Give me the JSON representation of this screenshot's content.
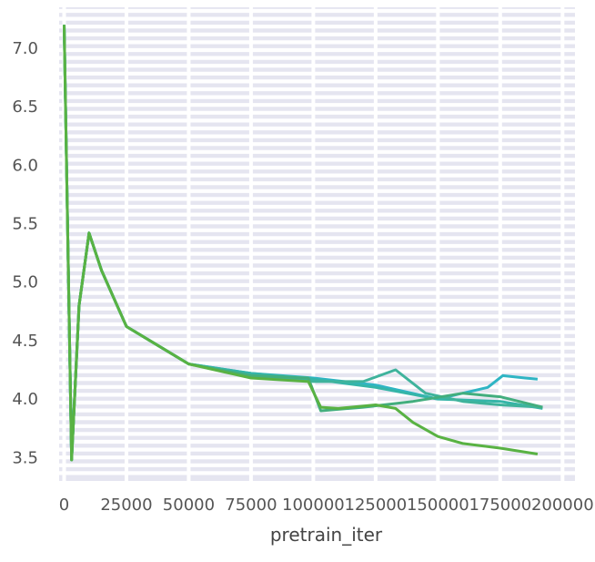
{
  "chart_data": {
    "type": "line",
    "title": "",
    "xlabel": "pretrain_iter",
    "ylabel": "",
    "xlim": [
      -2000,
      205000
    ],
    "ylim": [
      3.3,
      7.35
    ],
    "grid": true,
    "legend": "none",
    "background_color": "#e5e5f0",
    "grid_color": "#ffffff",
    "x_ticks": [
      0,
      25000,
      50000,
      75000,
      100000,
      125000,
      150000,
      175000,
      200000
    ],
    "x_tick_labels": [
      "0",
      "25000",
      "50000",
      "75000",
      "100000",
      "125000",
      "150000",
      "175000",
      "200000"
    ],
    "y_ticks": [
      3.5,
      4.0,
      4.5,
      5.0,
      5.5,
      6.0,
      6.5,
      7.0
    ],
    "y_tick_labels": [
      "3.5",
      "4.0",
      "4.5",
      "5.0",
      "5.5",
      "6.0",
      "6.5",
      "7.0"
    ],
    "series": [
      {
        "color": "#2fb5c4",
        "x": [
          0,
          3000,
          6000,
          10000,
          15000,
          25000,
          50000,
          75000,
          100000,
          125000,
          150000,
          160000,
          170000,
          176000,
          185000,
          190000
        ],
        "y": [
          7.2,
          3.48,
          4.8,
          5.42,
          5.1,
          4.62,
          4.3,
          4.22,
          4.18,
          4.12,
          4.0,
          4.05,
          4.1,
          4.2,
          4.18,
          4.17
        ]
      },
      {
        "color": "#35b5a8",
        "x": [
          0,
          3000,
          6000,
          10000,
          15000,
          25000,
          50000,
          75000,
          100000,
          125000,
          150000,
          175000,
          192000
        ],
        "y": [
          7.2,
          3.48,
          4.8,
          5.42,
          5.1,
          4.62,
          4.3,
          4.22,
          4.17,
          4.1,
          4.0,
          3.98,
          3.92
        ]
      },
      {
        "color": "#3fb39c",
        "x": [
          0,
          3000,
          6000,
          10000,
          15000,
          25000,
          50000,
          75000,
          100000,
          120000,
          133000,
          145000,
          160000,
          175000,
          192000
        ],
        "y": [
          7.2,
          3.48,
          4.8,
          5.42,
          5.1,
          4.62,
          4.3,
          4.2,
          4.15,
          4.15,
          4.25,
          4.05,
          3.98,
          3.95,
          3.93
        ]
      },
      {
        "color": "#43ae7e",
        "x": [
          0,
          3000,
          6000,
          10000,
          15000,
          25000,
          50000,
          75000,
          98000,
          103000,
          120000,
          140000,
          160000,
          175000,
          192000
        ],
        "y": [
          7.2,
          3.48,
          4.8,
          5.42,
          5.1,
          4.62,
          4.3,
          4.2,
          4.18,
          3.9,
          3.93,
          3.98,
          4.05,
          4.02,
          3.93
        ]
      },
      {
        "color": "#59b243",
        "x": [
          0,
          3000,
          6000,
          10000,
          15000,
          25000,
          50000,
          75000,
          98000,
          103000,
          110000,
          125000,
          133000,
          140000,
          150000,
          160000,
          175000,
          190000
        ],
        "y": [
          7.2,
          3.48,
          4.8,
          5.42,
          5.1,
          4.62,
          4.3,
          4.18,
          4.15,
          3.93,
          3.92,
          3.95,
          3.92,
          3.8,
          3.68,
          3.62,
          3.58,
          3.53
        ]
      }
    ]
  }
}
